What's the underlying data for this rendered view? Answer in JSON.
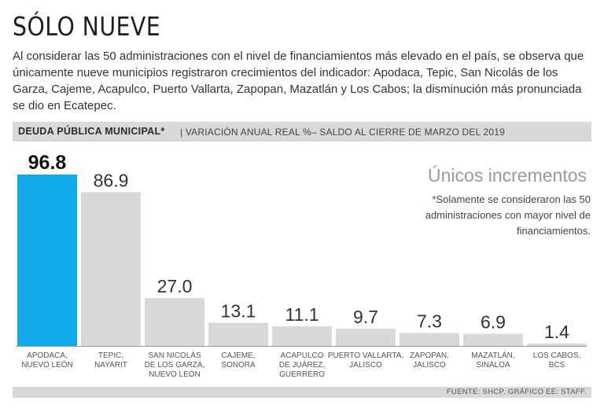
{
  "header": {
    "title": "SÓLO NUEVE",
    "description": "Al considerar las 50 administraciones con el nivel de financiamientos más elevado en el país, se observa que únicamente nueve municipios registraron crecimientos del indicador: Apodaca, Tepic, San Nicolás de los Garza, Cajeme, Acapulco, Puerto Vallarta, Zapopan, Mazatlán y Los Cabos; la disminución más pronunciada se dio en Ecatepec."
  },
  "band": {
    "bold": "DEUDA PÚBLICA MUNICIPAL*",
    "rest": "| VARIACIÓN ANUAL REAL %– SALDO AL CIERRE DE MARZO DEL 2019"
  },
  "annotation": {
    "heading": "Únicos incrementos",
    "note": "*Solamente se consideraron las 50 administraciones con mayor nivel de financiamientos."
  },
  "footer": {
    "source": "FUENTE: SHCP. GRÁFICO EE: STAFF."
  },
  "colors": {
    "highlight": "#12a9e9",
    "bar": "#d9d9d9",
    "baseline": "#9a9a9a"
  },
  "chart_data": {
    "type": "bar",
    "categories": [
      "APODACA,\nNUEVO LEÓN",
      "TEPIC,\nNAYARIT",
      "SAN NICOLÁS\nDE LOS GARZA,\nNUEVO LEÓN",
      "CAJEME,\nSONORA",
      "ACAPULCO\nDE JUÁREZ,\nGUERRERO",
      "PUERTO VALLARTA,\nJALISCO",
      "ZAPOPAN,\nJALISCO",
      "MAZATLÁN,\nSINALOA",
      "LOS CABOS,\nBCS"
    ],
    "values": [
      96.8,
      86.9,
      27.0,
      13.1,
      11.1,
      9.7,
      7.3,
      6.9,
      1.4
    ],
    "value_labels": [
      "96.8",
      "86.9",
      "27.0",
      "13.1",
      "11.1",
      "9.7",
      "7.3",
      "6.9",
      "1.4"
    ],
    "highlight_index": 0,
    "ylim": [
      0,
      96.8
    ],
    "grid": false,
    "title": "",
    "xlabel": "",
    "ylabel": ""
  }
}
